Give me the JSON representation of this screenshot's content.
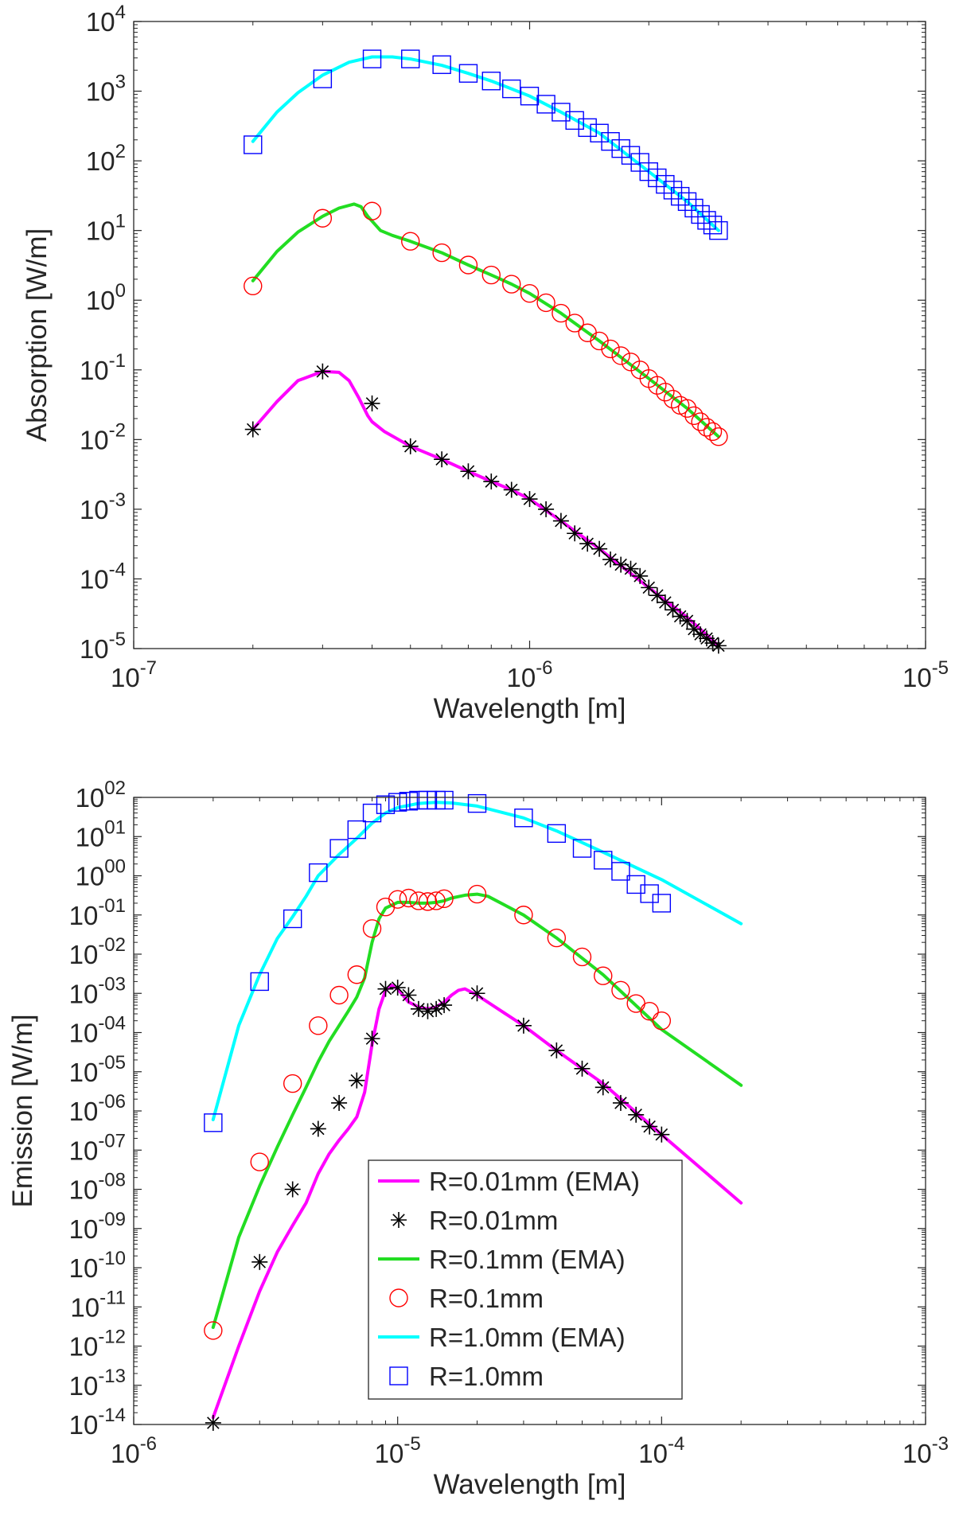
{
  "chart_data": [
    {
      "type": "line",
      "xscale": "log",
      "yscale": "log",
      "xlabel": "Wavelength [m]",
      "ylabel": "Absorption [W/m]",
      "xlim": [
        1e-07,
        1e-05
      ],
      "ylim": [
        1e-05,
        10000.0
      ],
      "xticks": [
        1e-07,
        1e-06,
        1e-05
      ],
      "xtick_labels": [
        [
          "10",
          "-7"
        ],
        [
          "10",
          "-6"
        ],
        [
          "10",
          "-5"
        ]
      ],
      "yticks": [
        1e-05,
        0.0001,
        0.001,
        0.01,
        0.1,
        1,
        10,
        100,
        1000,
        10000
      ],
      "ytick_labels": [
        [
          "10",
          "-5"
        ],
        [
          "10",
          "-4"
        ],
        [
          "10",
          "-3"
        ],
        [
          "10",
          "-2"
        ],
        [
          "10",
          "-1"
        ],
        [
          "10",
          "0"
        ],
        [
          "10",
          "1"
        ],
        [
          "10",
          "2"
        ],
        [
          "10",
          "3"
        ],
        [
          "10",
          "4"
        ]
      ],
      "series": [
        {
          "name": "R=0.01mm (EMA)",
          "kind": "line",
          "color": "#ff00ff",
          "x": [
            2e-07,
            2.3e-07,
            2.6e-07,
            3e-07,
            3.3e-07,
            3.5e-07,
            3.7e-07,
            3.9e-07,
            4e-07,
            4.3e-07,
            5e-07,
            6e-07,
            7e-07,
            8e-07,
            9e-07,
            1e-06,
            1.2e-06,
            1.5e-06,
            2e-06,
            2.5e-06,
            3e-06
          ],
          "y": [
            0.014,
            0.035,
            0.07,
            0.095,
            0.092,
            0.07,
            0.04,
            0.022,
            0.018,
            0.013,
            0.008,
            0.0052,
            0.0035,
            0.0025,
            0.0019,
            0.0014,
            0.00068,
            0.00027,
            7.5e-05,
            2.8e-05,
            1.1e-05
          ]
        },
        {
          "name": "R=0.01mm",
          "kind": "marker",
          "marker": "asterisk",
          "color": "#000000",
          "x": [
            2e-07,
            3e-07,
            4e-07,
            5e-07,
            6e-07,
            7e-07,
            8e-07,
            9e-07,
            1e-06,
            1.1e-06,
            1.2e-06,
            1.3e-06,
            1.4e-06,
            1.5e-06,
            1.6e-06,
            1.7e-06,
            1.8e-06,
            1.9e-06,
            2e-06,
            2.1e-06,
            2.2e-06,
            2.3e-06,
            2.4e-06,
            2.5e-06,
            2.6e-06,
            2.7e-06,
            2.8e-06,
            2.9e-06,
            3e-06
          ],
          "y": [
            0.014,
            0.095,
            0.033,
            0.008,
            0.0052,
            0.0035,
            0.0025,
            0.0019,
            0.0014,
            0.001,
            0.00068,
            0.00045,
            0.00032,
            0.00027,
            0.00019,
            0.00016,
            0.00014,
            0.00011,
            7.5e-05,
            5.8e-05,
            4.6e-05,
            3.6e-05,
            2.9e-05,
            2.5e-05,
            1.9e-05,
            1.6e-05,
            1.4e-05,
            1.2e-05,
            1.1e-05
          ]
        },
        {
          "name": "R=0.1mm (EMA)",
          "kind": "line",
          "color": "#22dd22",
          "x": [
            2e-07,
            2.3e-07,
            2.6e-07,
            3e-07,
            3.3e-07,
            3.6e-07,
            3.75e-07,
            3.9e-07,
            4.2e-07,
            4.5e-07,
            5e-07,
            6e-07,
            7e-07,
            8e-07,
            9e-07,
            1e-06,
            1.2e-06,
            1.5e-06,
            2e-06,
            2.5e-06,
            3e-06
          ],
          "y": [
            1.9,
            5.0,
            9.5,
            16,
            21,
            24,
            22,
            16,
            10,
            8.5,
            7.0,
            4.8,
            3.2,
            2.3,
            1.7,
            1.25,
            0.65,
            0.26,
            0.075,
            0.028,
            0.011
          ]
        },
        {
          "name": "R=0.1mm",
          "kind": "marker",
          "marker": "circle",
          "color": "#ff0000",
          "x": [
            2e-07,
            3e-07,
            4e-07,
            5e-07,
            6e-07,
            7e-07,
            8e-07,
            9e-07,
            1e-06,
            1.1e-06,
            1.2e-06,
            1.3e-06,
            1.4e-06,
            1.5e-06,
            1.6e-06,
            1.7e-06,
            1.8e-06,
            1.9e-06,
            2e-06,
            2.1e-06,
            2.2e-06,
            2.3e-06,
            2.4e-06,
            2.5e-06,
            2.6e-06,
            2.7e-06,
            2.8e-06,
            2.9e-06,
            3e-06
          ],
          "y": [
            1.6,
            15,
            19,
            7.0,
            4.8,
            3.2,
            2.3,
            1.7,
            1.25,
            0.92,
            0.65,
            0.47,
            0.34,
            0.26,
            0.2,
            0.16,
            0.13,
            0.1,
            0.075,
            0.06,
            0.048,
            0.038,
            0.031,
            0.028,
            0.022,
            0.018,
            0.015,
            0.013,
            0.011
          ]
        },
        {
          "name": "R=1.0mm (EMA)",
          "kind": "line",
          "color": "#00ffff",
          "x": [
            2e-07,
            2.3e-07,
            2.6e-07,
            3e-07,
            3.5e-07,
            4e-07,
            4.5e-07,
            5e-07,
            6e-07,
            7e-07,
            8e-07,
            9e-07,
            1e-06,
            1.2e-06,
            1.5e-06,
            2e-06,
            2.5e-06,
            3e-06
          ],
          "y": [
            190,
            500,
            950,
            1700,
            2600,
            3100,
            3100,
            2900,
            2350,
            1800,
            1400,
            1080,
            850,
            500,
            250,
            70,
            26,
            10
          ]
        },
        {
          "name": "R=1.0mm",
          "kind": "marker",
          "marker": "square",
          "color": "#0000ff",
          "x": [
            2e-07,
            3e-07,
            4e-07,
            5e-07,
            6e-07,
            7e-07,
            8e-07,
            9e-07,
            1e-06,
            1.1e-06,
            1.2e-06,
            1.3e-06,
            1.4e-06,
            1.5e-06,
            1.6e-06,
            1.7e-06,
            1.8e-06,
            1.9e-06,
            2e-06,
            2.1e-06,
            2.2e-06,
            2.3e-06,
            2.4e-06,
            2.5e-06,
            2.6e-06,
            2.7e-06,
            2.8e-06,
            2.9e-06,
            3e-06
          ],
          "y": [
            170,
            1500,
            2900,
            2900,
            2400,
            1800,
            1400,
            1080,
            850,
            650,
            500,
            380,
            300,
            250,
            190,
            150,
            120,
            95,
            70,
            57,
            46,
            38,
            31,
            26,
            21,
            17,
            14,
            12,
            10
          ]
        }
      ]
    },
    {
      "type": "line",
      "xscale": "log",
      "yscale": "log",
      "xlabel": "Wavelength [m]",
      "ylabel": "Emission [W/m]",
      "xlim": [
        1e-06,
        0.001
      ],
      "ylim": [
        1e-14,
        100.0
      ],
      "xticks": [
        1e-06,
        1e-05,
        0.0001,
        0.001
      ],
      "xtick_labels": [
        [
          "10",
          "-6"
        ],
        [
          "10",
          "-5"
        ],
        [
          "10",
          "-4"
        ],
        [
          "10",
          "-3"
        ]
      ],
      "yticks": [
        1e-14,
        1e-13,
        1e-12,
        1e-11,
        1e-10,
        1e-09,
        1e-08,
        1e-07,
        1e-06,
        1e-05,
        0.0001,
        0.001,
        0.01,
        0.1,
        1,
        10,
        100
      ],
      "ytick_labels": [
        [
          "10",
          "-14"
        ],
        [
          "10",
          "-13"
        ],
        [
          "10",
          "-12"
        ],
        [
          "10",
          "-11"
        ],
        [
          "10",
          "-10"
        ],
        [
          "10",
          "-09"
        ],
        [
          "10",
          "-08"
        ],
        [
          "10",
          "-07"
        ],
        [
          "10",
          "-06"
        ],
        [
          "10",
          "-05"
        ],
        [
          "10",
          "-04"
        ],
        [
          "10",
          "-03"
        ],
        [
          "10",
          "-02"
        ],
        [
          "10",
          "-01"
        ],
        [
          "10",
          "00"
        ],
        [
          "10",
          "01"
        ],
        [
          "10",
          "02"
        ]
      ],
      "legend": {
        "placement": "bottom-center",
        "entries": [
          "R=0.01mm (EMA)",
          "R=0.01mm",
          "R=0.1mm (EMA)",
          "R=0.1mm",
          "R=1.0mm (EMA)",
          "R=1.0mm"
        ]
      },
      "series": [
        {
          "name": "R=0.01mm (EMA)",
          "kind": "line",
          "color": "#ff00ff",
          "x": [
            2e-06,
            2.5e-06,
            3e-06,
            3.5e-06,
            4e-06,
            4.5e-06,
            5e-06,
            5.5e-06,
            6e-06,
            6.5e-06,
            7e-06,
            7.5e-06,
            8e-06,
            8.5e-06,
            9e-06,
            9.5e-06,
            1e-05,
            1.1e-05,
            1.2e-05,
            1.3e-05,
            1.4e-05,
            1.5e-05,
            1.6e-05,
            1.7e-05,
            1.8e-05,
            2e-05,
            3e-05,
            4e-05,
            6e-05,
            0.0001,
            0.0002
          ],
          "y": [
            1.5e-14,
            1e-12,
            2.5e-11,
            2.5e-10,
            1.2e-09,
            4.5e-09,
            2.5e-08,
            8e-08,
            1.8e-07,
            3.5e-07,
            7e-07,
            3e-06,
            5e-05,
            0.0004,
            0.0012,
            0.0016,
            0.0013,
            0.0006,
            0.00045,
            0.0004,
            0.00045,
            0.0006,
            0.0009,
            0.0012,
            0.0013,
            0.0009,
            0.00015,
            3.5e-05,
            5e-06,
            2.5e-07,
            4.5e-09
          ]
        },
        {
          "name": "R=0.01mm",
          "kind": "marker",
          "marker": "asterisk",
          "color": "#000000",
          "x": [
            2e-06,
            3e-06,
            4e-06,
            5e-06,
            6e-06,
            7e-06,
            8e-06,
            9e-06,
            1e-05,
            1.1e-05,
            1.2e-05,
            1.3e-05,
            1.4e-05,
            1.5e-05,
            2e-05,
            3e-05,
            4e-05,
            5e-05,
            6e-05,
            7e-05,
            8e-05,
            9e-05,
            0.0001
          ],
          "y": [
            1.1e-14,
            1.4e-10,
            1e-08,
            3.5e-07,
            1.6e-06,
            6e-06,
            7e-05,
            0.0013,
            0.0014,
            0.0009,
            0.0004,
            0.00035,
            0.0004,
            0.0005,
            0.001,
            0.00015,
            3.5e-05,
            1.2e-05,
            4e-06,
            1.6e-06,
            8e-07,
            4e-07,
            2.5e-07
          ]
        },
        {
          "name": "R=0.1mm (EMA)",
          "kind": "line",
          "color": "#22dd22",
          "x": [
            2e-06,
            2.5e-06,
            3e-06,
            3.5e-06,
            4e-06,
            4.5e-06,
            5e-06,
            5.5e-06,
            6e-06,
            6.5e-06,
            7e-06,
            7.5e-06,
            8e-06,
            8.5e-06,
            9e-06,
            1e-05,
            1.1e-05,
            1.2e-05,
            1.3e-05,
            1.4e-05,
            1.5e-05,
            1.6e-05,
            1.8e-05,
            2e-05,
            2.2e-05,
            3e-05,
            4e-05,
            6e-05,
            0.0001,
            0.0002
          ],
          "y": [
            3e-12,
            6e-10,
            1.2e-08,
            1.2e-07,
            8e-07,
            4e-06,
            1.8e-05,
            6e-05,
            0.00015,
            0.00035,
            0.0008,
            0.0025,
            0.02,
            0.08,
            0.15,
            0.21,
            0.21,
            0.2,
            0.2,
            0.21,
            0.23,
            0.27,
            0.32,
            0.34,
            0.3,
            0.1,
            0.026,
            0.003,
            0.00012,
            4.5e-06
          ]
        },
        {
          "name": "R=0.1mm",
          "kind": "marker",
          "marker": "circle",
          "color": "#ff0000",
          "x": [
            2e-06,
            3e-06,
            4e-06,
            5e-06,
            6e-06,
            7e-06,
            8e-06,
            9e-06,
            1e-05,
            1.1e-05,
            1.2e-05,
            1.3e-05,
            1.4e-05,
            1.5e-05,
            2e-05,
            3e-05,
            4e-05,
            5e-05,
            6e-05,
            7e-05,
            8e-05,
            9e-05,
            0.0001
          ],
          "y": [
            2.5e-12,
            5e-08,
            5e-06,
            0.00015,
            0.0009,
            0.003,
            0.045,
            0.16,
            0.25,
            0.27,
            0.23,
            0.22,
            0.23,
            0.26,
            0.34,
            0.1,
            0.026,
            0.0085,
            0.0028,
            0.0012,
            0.00055,
            0.00035,
            0.0002
          ]
        },
        {
          "name": "R=1.0mm (EMA)",
          "kind": "line",
          "color": "#00ffff",
          "x": [
            2e-06,
            2.5e-06,
            3e-06,
            3.5e-06,
            4e-06,
            4.5e-06,
            5e-06,
            6e-06,
            7e-06,
            8e-06,
            9e-06,
            1e-05,
            1.2e-05,
            1.4e-05,
            1.6e-05,
            2e-05,
            3e-05,
            4e-05,
            6e-05,
            0.0001,
            0.0002
          ],
          "y": [
            6e-07,
            0.00015,
            0.003,
            0.025,
            0.09,
            0.3,
            1,
            3.5,
            9,
            22,
            40,
            55,
            70,
            75,
            72,
            60,
            30,
            14,
            4,
            0.8,
            0.06
          ]
        },
        {
          "name": "R=1.0mm",
          "kind": "marker",
          "marker": "square",
          "color": "#0000ff",
          "x": [
            2e-06,
            3e-06,
            4e-06,
            5e-06,
            6e-06,
            7e-06,
            8e-06,
            9e-06,
            1e-05,
            1.1e-05,
            1.2e-05,
            1.3e-05,
            1.4e-05,
            1.5e-05,
            2e-05,
            3e-05,
            4e-05,
            5e-05,
            6e-05,
            7e-05,
            8e-05,
            9e-05,
            0.0001
          ],
          "y": [
            5e-07,
            0.002,
            0.08,
            1.2,
            5,
            15,
            40,
            65,
            75,
            80,
            85,
            85,
            85,
            85,
            70,
            30,
            12,
            5,
            2.5,
            1.3,
            0.6,
            0.35,
            0.2
          ]
        }
      ]
    }
  ]
}
